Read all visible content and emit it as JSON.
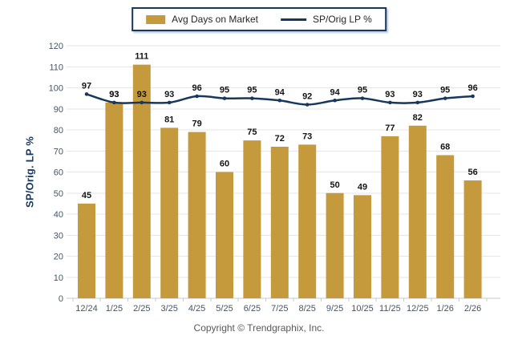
{
  "legend": {
    "bar_label": "Avg Days on Market",
    "line_label": "SP/Orig LP %"
  },
  "footer": {
    "copyright": "Copyright © Trendgraphix, Inc."
  },
  "colors": {
    "bar": "#C49A3C",
    "line": "#17375E",
    "tick_text": "#44546A",
    "grid": "#E5E5E5",
    "axis": "#C9C9C9",
    "data_label": "#141414",
    "ylabel_text": "#17375E",
    "copyright_text": "#595959"
  },
  "chart_data": {
    "type": "bar",
    "categories": [
      "12/24",
      "1/25",
      "2/25",
      "3/25",
      "4/25",
      "5/25",
      "6/25",
      "7/25",
      "8/25",
      "9/25",
      "10/25",
      "11/25",
      "12/25",
      "1/26",
      "2/26"
    ],
    "series": [
      {
        "name": "Avg Days on Market",
        "type": "bar",
        "values": [
          45,
          93,
          111,
          81,
          79,
          60,
          75,
          72,
          73,
          50,
          49,
          77,
          82,
          68,
          56
        ]
      },
      {
        "name": "SP/Orig LP %",
        "type": "line",
        "values": [
          97,
          93,
          93,
          93,
          96,
          95,
          95,
          94,
          92,
          94,
          95,
          93,
          93,
          95,
          96
        ]
      }
    ],
    "title": "",
    "xlabel": "",
    "ylabel": "SP/Orig. LP %",
    "ylim": [
      0,
      120
    ],
    "ytick_step": 10,
    "grid": true,
    "legend_position": "top-center",
    "data_labels": true
  }
}
